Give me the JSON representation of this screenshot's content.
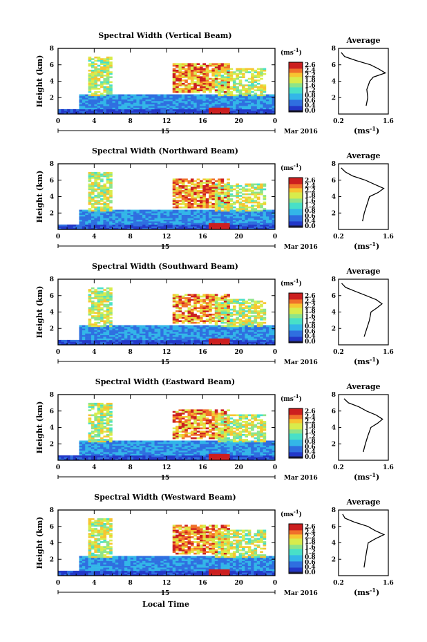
{
  "figure": {
    "x_axis_label": "Local Time",
    "colorbar_unit": "(ms",
    "colorbar_unit_exp": "-1",
    "colorbar_ticks": [
      "2.6",
      "2.4",
      "2.2",
      "1.8",
      "1.6",
      "1.2",
      "0.8",
      "0.6",
      "0.4",
      "0.0"
    ],
    "date_label": "Mar 2016",
    "time_ticks": [
      "0",
      "4",
      "8",
      "12",
      "16",
      "20",
      "0"
    ],
    "day_label": "15",
    "height_ticks": [
      "2",
      "4",
      "6",
      "8"
    ],
    "height_label": "Height (km)",
    "avg_title": "Average",
    "avg_x_ticks": [
      "0.2",
      "1.6"
    ],
    "avg_y_ticks": [
      "2",
      "4",
      "6",
      "8"
    ],
    "avg_unit": "(ms",
    "avg_unit_exp": "-1"
  },
  "chart_data": [
    {
      "type": "heatmap",
      "title": "Spectral Width (Vertical Beam)",
      "xlabel": "Local Time",
      "ylabel": "Height (km)",
      "xlim": [
        0,
        24
      ],
      "ylim": [
        0,
        8
      ],
      "colorbar": {
        "label": "(ms-1)",
        "range": [
          0,
          2.6
        ]
      },
      "profile": {
        "title": "Average",
        "xlim": [
          0.2,
          1.6
        ],
        "ylim": [
          0,
          8
        ],
        "heights": [
          1,
          2,
          3,
          4,
          4.5,
          5,
          5.5,
          6,
          6.5,
          7,
          7.5
        ],
        "values": [
          0.95,
          1.0,
          1.0,
          1.05,
          1.2,
          1.5,
          1.3,
          1.1,
          0.7,
          0.4,
          0.3
        ]
      }
    },
    {
      "type": "heatmap",
      "title": "Spectral Width (Northward Beam)",
      "xlabel": "Local Time",
      "ylabel": "Height (km)",
      "xlim": [
        0,
        24
      ],
      "ylim": [
        0,
        8
      ],
      "colorbar": {
        "label": "(ms-1)",
        "range": [
          0,
          2.6
        ]
      },
      "profile": {
        "title": "Average",
        "xlim": [
          0.2,
          1.6
        ],
        "ylim": [
          0,
          8
        ],
        "heights": [
          1,
          2,
          3,
          4,
          4.5,
          5,
          5.5,
          6,
          6.5,
          7,
          7.5
        ],
        "values": [
          0.9,
          0.95,
          1.0,
          1.05,
          1.3,
          1.45,
          1.2,
          0.95,
          0.6,
          0.4,
          0.3
        ]
      }
    },
    {
      "type": "heatmap",
      "title": "Spectral Width (Southward Beam)",
      "xlabel": "Local Time",
      "ylabel": "Height (km)",
      "xlim": [
        0,
        24
      ],
      "ylim": [
        0,
        8
      ],
      "colorbar": {
        "label": "(ms-1)",
        "range": [
          0,
          2.6
        ]
      },
      "profile": {
        "title": "Average",
        "xlim": [
          0.2,
          1.6
        ],
        "ylim": [
          0,
          8
        ],
        "heights": [
          1,
          2,
          3,
          4,
          4.5,
          5,
          5.5,
          6,
          6.5,
          7,
          7.5
        ],
        "values": [
          0.95,
          1.0,
          1.05,
          1.1,
          1.3,
          1.45,
          1.25,
          1.0,
          0.7,
          0.4,
          0.3
        ]
      }
    },
    {
      "type": "heatmap",
      "title": "Spectral Width (Eastward Beam)",
      "xlabel": "Local Time",
      "ylabel": "Height (km)",
      "xlim": [
        0,
        24
      ],
      "ylim": [
        0,
        8
      ],
      "colorbar": {
        "label": "(ms-1)",
        "range": [
          0,
          2.6
        ]
      },
      "profile": {
        "title": "Average",
        "xlim": [
          0.2,
          1.6
        ],
        "ylim": [
          0,
          8
        ],
        "heights": [
          1,
          2,
          3,
          4,
          4.5,
          5,
          5.5,
          6,
          6.5,
          7,
          7.5
        ],
        "values": [
          0.9,
          0.95,
          1.0,
          1.1,
          1.3,
          1.45,
          1.25,
          1.0,
          0.75,
          0.45,
          0.35
        ]
      }
    },
    {
      "type": "heatmap",
      "title": "Spectral Width (Westward Beam)",
      "xlabel": "Local Time",
      "ylabel": "Height (km)",
      "xlim": [
        0,
        24
      ],
      "ylim": [
        0,
        8
      ],
      "colorbar": {
        "label": "(ms-1)",
        "range": [
          0,
          2.6
        ]
      },
      "profile": {
        "title": "Average",
        "xlim": [
          0.2,
          1.6
        ],
        "ylim": [
          0,
          8
        ],
        "heights": [
          1,
          2,
          3,
          4,
          4.5,
          5,
          5.5,
          6,
          6.5,
          7,
          7.5
        ],
        "values": [
          0.9,
          0.95,
          1.0,
          1.05,
          1.25,
          1.5,
          1.25,
          1.0,
          0.65,
          0.4,
          0.3
        ]
      }
    }
  ]
}
